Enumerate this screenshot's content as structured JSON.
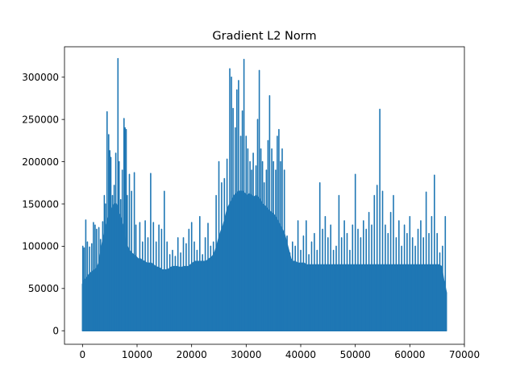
{
  "chart_data": {
    "type": "line",
    "title": "Gradient L2 Norm",
    "xlabel": "",
    "ylabel": "",
    "xlim": [
      -3300,
      70000
    ],
    "ylim": [
      -16000,
      336000
    ],
    "x_ticks": [
      0,
      10000,
      20000,
      30000,
      40000,
      50000,
      60000,
      70000
    ],
    "x_tick_labels": [
      "0",
      "10000",
      "20000",
      "30000",
      "40000",
      "50000",
      "60000",
      "70000"
    ],
    "y_ticks": [
      0,
      50000,
      100000,
      150000,
      200000,
      250000,
      300000
    ],
    "y_tick_labels": [
      "0",
      "50000",
      "100000",
      "150000",
      "200000",
      "250000",
      "300000"
    ],
    "grid": false,
    "legend": "none",
    "line_color": "#1f77b4",
    "n_steps": 66700,
    "series": [
      {
        "envelope_x": [
          0,
          300,
          700,
          1000,
          1400,
          1800,
          2200,
          2600,
          3000,
          3400,
          3800,
          4200,
          4600,
          5000,
          5400,
          5800,
          6200,
          6600,
          7000,
          7400,
          7800,
          8200,
          8600,
          9000,
          9400,
          9800,
          10200,
          10600,
          11000,
          11400,
          11800,
          12200,
          12600,
          13000,
          13400,
          13800,
          14200,
          14600,
          15000,
          15400,
          15800,
          16200,
          16600,
          17000,
          17400,
          17800,
          18200,
          18600,
          19000,
          19400,
          19800,
          20200,
          20600,
          21000,
          21400,
          21800,
          22200,
          22600,
          23000,
          23400,
          23800,
          24200,
          24600,
          25000,
          25400,
          25800,
          26200,
          26600,
          27000,
          27400,
          27800,
          28200,
          28600,
          29000,
          29400,
          29800,
          30200,
          30600,
          31000,
          31400,
          31800,
          32200,
          32600,
          33000,
          33400,
          33800,
          34200,
          34600,
          35000,
          35400,
          35800,
          36200,
          36600,
          37000,
          37400,
          37800,
          38200,
          38600,
          39000,
          39400,
          39800,
          40200,
          40600,
          41000,
          41400,
          41800,
          42200,
          42600,
          43000,
          43400,
          43800,
          44200,
          44600,
          45000,
          45400,
          45800,
          46200,
          46600,
          47000,
          47400,
          47800,
          48200,
          48600,
          49000,
          49400,
          49800,
          50200,
          50600,
          51000,
          51400,
          51800,
          52200,
          52600,
          53000,
          53400,
          53800,
          54200,
          54600,
          55000,
          55400,
          55800,
          56200,
          56600,
          57000,
          57400,
          57800,
          58200,
          58600,
          59000,
          59400,
          59800,
          60200,
          60600,
          61000,
          61400,
          61800,
          62200,
          62600,
          63000,
          63400,
          63800,
          64200,
          64600,
          65000,
          65400,
          65800,
          66200,
          66700
        ],
        "envelope_y": [
          55000,
          60000,
          62000,
          65000,
          68000,
          70000,
          72000,
          74000,
          80000,
          95000,
          110000,
          120000,
          130000,
          140000,
          145000,
          150000,
          150000,
          140000,
          135000,
          125000,
          110000,
          100000,
          95000,
          92000,
          90000,
          88000,
          85000,
          85000,
          83000,
          82000,
          80000,
          80000,
          80000,
          78000,
          76000,
          75000,
          74000,
          72000,
          72000,
          72000,
          73000,
          75000,
          76000,
          76000,
          76000,
          75000,
          75000,
          76000,
          76000,
          76000,
          78000,
          80000,
          82000,
          82000,
          82000,
          82000,
          82000,
          82000,
          84000,
          86000,
          88000,
          92000,
          100000,
          110000,
          118000,
          125000,
          135000,
          145000,
          150000,
          155000,
          160000,
          162000,
          165000,
          165000,
          165000,
          162000,
          160000,
          162000,
          160000,
          158000,
          160000,
          158000,
          155000,
          150000,
          148000,
          145000,
          142000,
          140000,
          138000,
          135000,
          130000,
          125000,
          120000,
          115000,
          105000,
          95000,
          85000,
          82000,
          82000,
          80000,
          80000,
          80000,
          80000,
          78000,
          78000,
          78000,
          78000,
          78000,
          78000,
          78000,
          78000,
          78000,
          78000,
          78000,
          78000,
          78000,
          78000,
          78000,
          78000,
          78000,
          78000,
          78000,
          78000,
          78000,
          78000,
          78000,
          78000,
          78000,
          78000,
          78000,
          78000,
          78000,
          78000,
          78000,
          78000,
          78000,
          78000,
          78000,
          78000,
          78000,
          78000,
          78000,
          78000,
          78000,
          78000,
          78000,
          78000,
          78000,
          78000,
          78000,
          78000,
          78000,
          78000,
          78000,
          78000,
          78000,
          78000,
          78000,
          78000,
          78000,
          78000,
          78000,
          78000,
          78000,
          78000,
          76000,
          60000,
          45000
        ],
        "spikes": [
          [
            50,
            100000
          ],
          [
            300,
            98000
          ],
          [
            600,
            131000
          ],
          [
            900,
            105000
          ],
          [
            1300,
            99000
          ],
          [
            1700,
            103000
          ],
          [
            2000,
            128000
          ],
          [
            2300,
            125000
          ],
          [
            2600,
            120000
          ],
          [
            3000,
            122000
          ],
          [
            3300,
            108000
          ],
          [
            3700,
            129000
          ],
          [
            4000,
            160000
          ],
          [
            4200,
            150000
          ],
          [
            4500,
            259000
          ],
          [
            4800,
            232000
          ],
          [
            5000,
            213000
          ],
          [
            5200,
            205000
          ],
          [
            5500,
            160000
          ],
          [
            5800,
            172000
          ],
          [
            6100,
            210000
          ],
          [
            6500,
            322000
          ],
          [
            6700,
            200000
          ],
          [
            7000,
            155000
          ],
          [
            7300,
            190000
          ],
          [
            7600,
            251000
          ],
          [
            7800,
            240000
          ],
          [
            8000,
            238000
          ],
          [
            8200,
            160000
          ],
          [
            8600,
            185000
          ],
          [
            9000,
            165000
          ],
          [
            9500,
            187000
          ],
          [
            9800,
            125000
          ],
          [
            10500,
            128000
          ],
          [
            11000,
            105000
          ],
          [
            11500,
            130000
          ],
          [
            12000,
            110000
          ],
          [
            12500,
            186000
          ],
          [
            13000,
            128000
          ],
          [
            13500,
            105000
          ],
          [
            14000,
            125000
          ],
          [
            14500,
            120000
          ],
          [
            15000,
            165000
          ],
          [
            15500,
            105000
          ],
          [
            16000,
            90000
          ],
          [
            16500,
            95000
          ],
          [
            17000,
            88000
          ],
          [
            17500,
            110000
          ],
          [
            18000,
            92000
          ],
          [
            18500,
            110000
          ],
          [
            19000,
            103000
          ],
          [
            19500,
            120000
          ],
          [
            20000,
            128000
          ],
          [
            20500,
            105000
          ],
          [
            21000,
            95000
          ],
          [
            21500,
            135000
          ],
          [
            22000,
            90000
          ],
          [
            22500,
            110000
          ],
          [
            23000,
            127000
          ],
          [
            23500,
            100000
          ],
          [
            24000,
            105000
          ],
          [
            24500,
            160000
          ],
          [
            25000,
            200000
          ],
          [
            25500,
            175000
          ],
          [
            26000,
            180000
          ],
          [
            26500,
            203000
          ],
          [
            27000,
            310000
          ],
          [
            27300,
            300000
          ],
          [
            27600,
            263000
          ],
          [
            28000,
            240000
          ],
          [
            28300,
            285000
          ],
          [
            28600,
            296000
          ],
          [
            29000,
            230000
          ],
          [
            29300,
            260000
          ],
          [
            29600,
            321000
          ],
          [
            30000,
            230000
          ],
          [
            30300,
            215000
          ],
          [
            30700,
            200000
          ],
          [
            31000,
            190000
          ],
          [
            31300,
            210000
          ],
          [
            31800,
            195000
          ],
          [
            32100,
            250000
          ],
          [
            32400,
            308000
          ],
          [
            32700,
            215000
          ],
          [
            33000,
            200000
          ],
          [
            33300,
            175000
          ],
          [
            33700,
            190000
          ],
          [
            34000,
            225000
          ],
          [
            34300,
            278000
          ],
          [
            34700,
            215000
          ],
          [
            35000,
            200000
          ],
          [
            35400,
            190000
          ],
          [
            35700,
            230000
          ],
          [
            36000,
            238000
          ],
          [
            36300,
            200000
          ],
          [
            36600,
            215000
          ],
          [
            37000,
            190000
          ],
          [
            37500,
            112000
          ],
          [
            38000,
            92000
          ],
          [
            38500,
            105000
          ],
          [
            39000,
            100000
          ],
          [
            39500,
            130000
          ],
          [
            40000,
            95000
          ],
          [
            40500,
            112000
          ],
          [
            41000,
            130000
          ],
          [
            41500,
            90000
          ],
          [
            42000,
            105000
          ],
          [
            42500,
            115000
          ],
          [
            43000,
            95000
          ],
          [
            43500,
            175000
          ],
          [
            44000,
            120000
          ],
          [
            44500,
            135000
          ],
          [
            45000,
            110000
          ],
          [
            45500,
            125000
          ],
          [
            46000,
            95000
          ],
          [
            46500,
            100000
          ],
          [
            47000,
            160000
          ],
          [
            47500,
            110000
          ],
          [
            48000,
            130000
          ],
          [
            48500,
            115000
          ],
          [
            49000,
            95000
          ],
          [
            49500,
            125000
          ],
          [
            50000,
            185000
          ],
          [
            50500,
            120000
          ],
          [
            51000,
            110000
          ],
          [
            51500,
            130000
          ],
          [
            52000,
            120000
          ],
          [
            52500,
            140000
          ],
          [
            53000,
            125000
          ],
          [
            53500,
            160000
          ],
          [
            54000,
            172000
          ],
          [
            54500,
            262000
          ],
          [
            55000,
            165000
          ],
          [
            55500,
            125000
          ],
          [
            56000,
            115000
          ],
          [
            56500,
            140000
          ],
          [
            57000,
            160000
          ],
          [
            57500,
            110000
          ],
          [
            58000,
            130000
          ],
          [
            58500,
            100000
          ],
          [
            59000,
            125000
          ],
          [
            59500,
            115000
          ],
          [
            60000,
            135000
          ],
          [
            60500,
            110000
          ],
          [
            61000,
            100000
          ],
          [
            61500,
            120000
          ],
          [
            62000,
            130000
          ],
          [
            62500,
            110000
          ],
          [
            63000,
            164000
          ],
          [
            63500,
            115000
          ],
          [
            64000,
            135000
          ],
          [
            64500,
            184000
          ],
          [
            65000,
            115000
          ],
          [
            65500,
            92000
          ],
          [
            66000,
            100000
          ],
          [
            66500,
            135000
          ]
        ]
      }
    ]
  }
}
